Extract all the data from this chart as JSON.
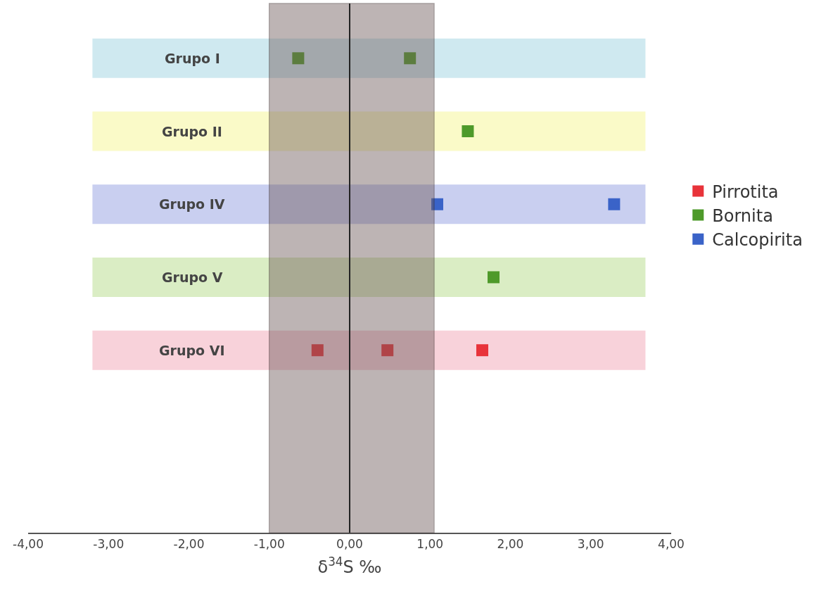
{
  "chart_data": {
    "type": "scatter",
    "orientation": "horizontal",
    "xlabel": "δ$^{34}$S ‰",
    "categories": [
      "Grupo I",
      "Grupo II",
      "Grupo IV",
      "Grupo V",
      "Grupo VI",
      null,
      null
    ],
    "series": [
      {
        "name": "Pirrotita",
        "color": "#e8333a",
        "values": [
          null,
          null,
          null,
          null,
          -0.4,
          null,
          null
        ]
      },
      {
        "name": "Bornita",
        "color": "#4e9a2a",
        "values": [
          -0.64,
          1.47,
          null,
          1.79,
          null,
          null,
          null
        ]
      },
      {
        "name": "Calcopirita",
        "color": "#3a63c8",
        "values": [
          null,
          null,
          1.09,
          null,
          null,
          null,
          null
        ]
      },
      {
        "color": "#e8333a",
        "values": [
          null,
          null,
          null,
          null,
          0.47,
          null,
          null
        ]
      },
      {
        "color": "#e8333a",
        "values": [
          null,
          null,
          null,
          null,
          1.65,
          null,
          null
        ]
      },
      {
        "color": "#4e9a2a",
        "values": [
          0.75,
          null,
          null,
          null,
          null,
          null,
          null
        ]
      },
      {
        "color": "#3a63c8",
        "values": [
          null,
          null,
          3.29,
          null,
          null,
          null,
          null
        ]
      }
    ],
    "xlim": [
      -4,
      4
    ],
    "xticks": [
      {
        "value": -4,
        "label": "-4,00"
      },
      {
        "value": -3,
        "label": "-3,00"
      },
      {
        "value": -2,
        "label": "-2,00"
      },
      {
        "value": -1,
        "label": "-1,00"
      },
      {
        "value": 0,
        "label": "0,00"
      },
      {
        "value": 1,
        "label": "1,00"
      },
      {
        "value": 2,
        "label": "2,00"
      },
      {
        "value": 3,
        "label": "3,00"
      },
      {
        "value": 4,
        "label": "4,00"
      }
    ],
    "bands": [
      {
        "axis": "y",
        "from": "Grupo I",
        "to": "Grupo I",
        "color": "#cfe9f0"
      },
      {
        "axis": "y",
        "from": "Grupo II",
        "to": "Grupo II",
        "color": "#fafac8"
      },
      {
        "axis": "y",
        "from": "Grupo IV",
        "to": "Grupo IV",
        "color": "#c9cff0"
      },
      {
        "axis": "y",
        "from": "Grupo V",
        "to": "Grupo V",
        "color": "#daedc4"
      },
      {
        "axis": "y",
        "from": "Grupo VI",
        "to": "Grupo VI",
        "color": "#f8d2da"
      },
      {
        "axis": "x",
        "from": -1,
        "to": 1.05,
        "color": "#6e5a5a"
      }
    ],
    "ref_lines": [
      {
        "axis": "x",
        "value": 0,
        "color": "#222222"
      }
    ],
    "marker": "square",
    "legend": "right",
    "grid": false,
    "tick_labels": "x"
  }
}
